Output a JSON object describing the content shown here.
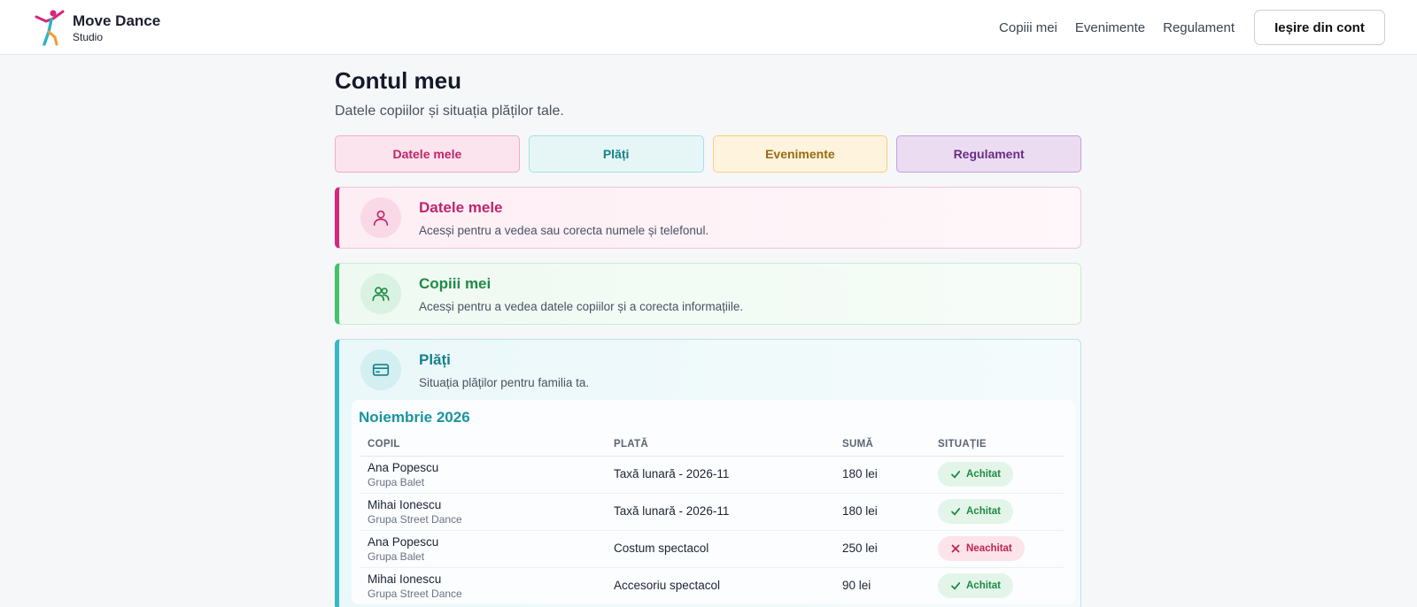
{
  "brand": {
    "name": "Move Dance",
    "sub": "Studio"
  },
  "nav": {
    "items": [
      "Copiii mei",
      "Evenimente",
      "Regulament"
    ],
    "logout": "Ieșire din cont"
  },
  "page": {
    "title": "Contul meu",
    "subtitle": "Datele copiilor și situația plăților tale."
  },
  "tabs": [
    "Datele mele",
    "Plăți",
    "Evenimente",
    "Regulament"
  ],
  "cards": {
    "datele": {
      "title": "Datele mele",
      "desc": "Acesși pentru a vedea sau corecta numele și telefonul."
    },
    "copii": {
      "title": "Copiii mei",
      "desc": "Acesși pentru a vedea datele copiilor și a corecta informațiile."
    },
    "plati": {
      "title": "Plăți",
      "desc": "Situația plăților pentru familia ta."
    }
  },
  "payments": {
    "month": "Noiembrie 2026",
    "columns": [
      "COPIL",
      "PLATĂ",
      "SUMĂ",
      "SITUAȚIE"
    ],
    "rows": [
      {
        "child": "Ana Popescu",
        "group": "Grupa Balet",
        "payment": "Taxă lunară - 2026-11",
        "amount": "180 lei",
        "status": "Achitat",
        "paid": true
      },
      {
        "child": "Mihai Ionescu",
        "group": "Grupa Street Dance",
        "payment": "Taxă lunară - 2026-11",
        "amount": "180 lei",
        "status": "Achitat",
        "paid": true
      },
      {
        "child": "Ana Popescu",
        "group": "Grupa Balet",
        "payment": "Costum spectacol",
        "amount": "250 lei",
        "status": "Neachitat",
        "paid": false
      },
      {
        "child": "Mihai Ionescu",
        "group": "Grupa Street Dance",
        "payment": "Accesoriu spectacol",
        "amount": "90 lei",
        "status": "Achitat",
        "paid": true
      }
    ]
  },
  "colors": {
    "pink": "#c0246b",
    "green": "#1f8a45",
    "teal": "#16818a",
    "amber": "#9a6a10",
    "purple": "#6a2d86"
  },
  "icons": {
    "logo": "dancer-logo-icon",
    "datele": "user-icon",
    "copii": "users-icon",
    "plati": "credit-card-icon",
    "paid": "check-icon",
    "unpaid": "x-icon"
  }
}
